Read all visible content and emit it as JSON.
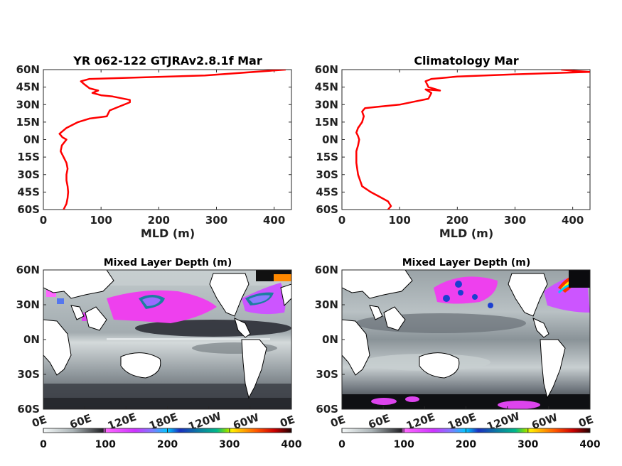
{
  "colors": {
    "line": "#ff0000",
    "axis": "#262626",
    "land": "#ffffff",
    "coast": "#000000"
  },
  "chart_data": [
    {
      "type": "line",
      "title": "YR 062-122 GTJRAv2.8.1f Mar",
      "xlabel": "MLD (m)",
      "xlim": [
        0,
        430
      ],
      "ylim": [
        -60,
        60
      ],
      "xticks": [
        "0",
        "100",
        "200",
        "300",
        "400"
      ],
      "yticks": [
        "60N",
        "45N",
        "30N",
        "15N",
        "0N",
        "15S",
        "30S",
        "45S",
        "60S"
      ],
      "x": [
        35,
        40,
        42,
        43,
        42,
        40,
        40,
        42,
        40,
        35,
        30,
        32,
        40,
        33,
        28,
        40,
        60,
        80,
        110,
        115,
        130,
        150,
        150,
        120,
        100,
        85,
        95,
        80,
        72,
        65,
        80,
        280,
        420
      ],
      "y": [
        -60,
        -55,
        -50,
        -45,
        -40,
        -35,
        -30,
        -25,
        -20,
        -15,
        -10,
        -5,
        0,
        2,
        5,
        10,
        15,
        18,
        20,
        25,
        28,
        32,
        34,
        37,
        38,
        40,
        42,
        44,
        47,
        50,
        52,
        55,
        60
      ]
    },
    {
      "type": "line",
      "title": "Climatology Mar",
      "xlabel": "MLD (m)",
      "xlim": [
        0,
        430
      ],
      "ylim": [
        -60,
        60
      ],
      "xticks": [
        "0",
        "100",
        "200",
        "300",
        "400"
      ],
      "yticks": [
        "60N",
        "45N",
        "30N",
        "15N",
        "0N",
        "15S",
        "30S",
        "45S",
        "60S"
      ],
      "x": [
        80,
        85,
        80,
        65,
        50,
        35,
        28,
        25,
        25,
        28,
        30,
        28,
        25,
        28,
        35,
        38,
        35,
        40,
        60,
        100,
        130,
        150,
        155,
        145,
        170,
        150,
        145,
        155,
        200,
        300,
        430,
        400,
        380
      ],
      "y": [
        -60,
        -57,
        -53,
        -49,
        -45,
        -40,
        -30,
        -20,
        -10,
        -5,
        0,
        3,
        6,
        10,
        15,
        20,
        24,
        27,
        28,
        30,
        33,
        35,
        40,
        43,
        42,
        45,
        50,
        52,
        54,
        56,
        58,
        59,
        60
      ]
    },
    {
      "type": "heatmap",
      "title": "Mixed Layer Depth (m)",
      "colorbar": {
        "min": 0,
        "max": 400,
        "ticks": [
          "0",
          "100",
          "200",
          "300",
          "400"
        ]
      },
      "xticks": [
        "0E",
        "60E",
        "120E",
        "180E",
        "120W",
        "60W",
        "0E"
      ],
      "yticks": [
        "60N",
        "30N",
        "0N",
        "30S",
        "60S"
      ]
    },
    {
      "type": "heatmap",
      "title": "Mixed Layer Depth (m)",
      "colorbar": {
        "min": 0,
        "max": 400,
        "ticks": [
          "0",
          "100",
          "200",
          "300",
          "400"
        ]
      },
      "xticks": [
        "0E",
        "60E",
        "120E",
        "180E",
        "120W",
        "60W",
        "0E"
      ],
      "yticks": [
        "60N",
        "30N",
        "0N",
        "30S",
        "60S"
      ]
    }
  ]
}
